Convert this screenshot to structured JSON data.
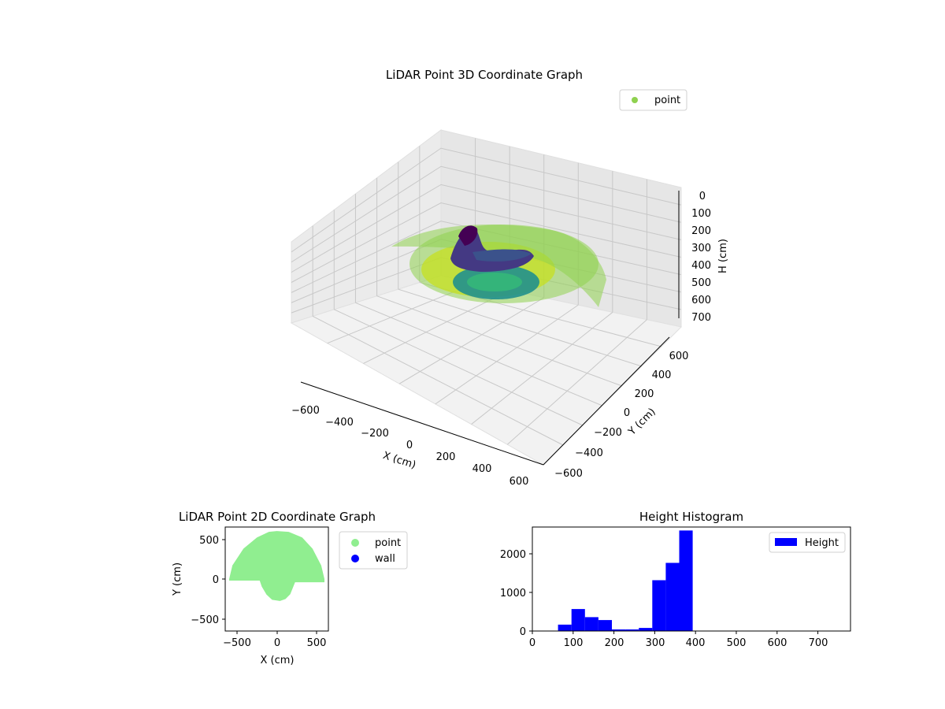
{
  "chart_data": [
    {
      "type": "scatter",
      "projection": "3d",
      "title": "LiDAR Point 3D Coordinate Graph",
      "xlabel": "X (cm)",
      "ylabel": "Y (cm)",
      "zlabel": "H (cm)",
      "xlim": [
        -650,
        650
      ],
      "ylim": [
        -650,
        650
      ],
      "zlim": [
        780,
        0
      ],
      "z_inverted": true,
      "x_ticks": [
        "−600",
        "−400",
        "−200",
        "0",
        "200",
        "400",
        "600"
      ],
      "y_ticks": [
        "−600",
        "−400",
        "−200",
        "0",
        "200",
        "400",
        "600"
      ],
      "z_ticks": [
        "0",
        "100",
        "200",
        "300",
        "400",
        "500",
        "600",
        "700"
      ],
      "grid": true,
      "colormap": "viridis",
      "legend": {
        "position": "top-right",
        "entries": [
          {
            "label": "point",
            "color": "#8fd14f"
          }
        ]
      },
      "features": [
        {
          "name": "floor ring",
          "x_range": [
            -600,
            600
          ],
          "y_range": [
            -250,
            600
          ],
          "h_range": [
            340,
            400
          ]
        },
        {
          "name": "inner clutter",
          "x_range": [
            -250,
            250
          ],
          "y_range": [
            -250,
            250
          ],
          "h_range": [
            100,
            330
          ]
        }
      ]
    },
    {
      "type": "scatter",
      "title": "LiDAR Point 2D Coordinate Graph",
      "xlabel": "X (cm)",
      "ylabel": "Y (cm)",
      "xlim": [
        -650,
        650
      ],
      "ylim": [
        -650,
        650
      ],
      "x_ticks": [
        "−500",
        "0",
        "500"
      ],
      "y_ticks": [
        "−500",
        "0",
        "500"
      ],
      "legend": {
        "position": "outside-right",
        "entries": [
          {
            "label": "point",
            "color": "#90ee90"
          },
          {
            "label": "wall",
            "color": "#0000ff"
          }
        ]
      },
      "outline": {
        "x": [
          -600,
          -560,
          -420,
          -250,
          -100,
          0,
          150,
          320,
          450,
          560,
          600,
          600,
          230,
          170,
          110,
          40,
          -60,
          -130,
          -190,
          -215,
          -600
        ],
        "y": [
          0,
          170,
          380,
          520,
          590,
          600,
          590,
          520,
          380,
          170,
          0,
          -40,
          -40,
          -190,
          -250,
          -275,
          -260,
          -195,
          -95,
          -20,
          -20
        ]
      }
    },
    {
      "type": "bar",
      "title": "Height Histogram",
      "xlim": [
        0,
        780
      ],
      "ylim": [
        0,
        2700
      ],
      "x_ticks": [
        "0",
        "100",
        "200",
        "300",
        "400",
        "500",
        "600",
        "700"
      ],
      "y_ticks": [
        "0",
        "1000",
        "2000"
      ],
      "color": "#0000ff",
      "legend": {
        "position": "top-right",
        "entries": [
          {
            "label": "Height",
            "color": "#0000ff"
          }
        ]
      },
      "bins": [
        {
          "x0": 63,
          "x1": 96,
          "value": 165
        },
        {
          "x0": 96,
          "x1": 129,
          "value": 570
        },
        {
          "x0": 129,
          "x1": 162,
          "value": 360
        },
        {
          "x0": 162,
          "x1": 195,
          "value": 285
        },
        {
          "x0": 195,
          "x1": 228,
          "value": 40
        },
        {
          "x0": 228,
          "x1": 261,
          "value": 40
        },
        {
          "x0": 261,
          "x1": 294,
          "value": 80
        },
        {
          "x0": 294,
          "x1": 327,
          "value": 1320
        },
        {
          "x0": 327,
          "x1": 360,
          "value": 1770
        },
        {
          "x0": 360,
          "x1": 393,
          "value": 2610
        }
      ]
    }
  ]
}
